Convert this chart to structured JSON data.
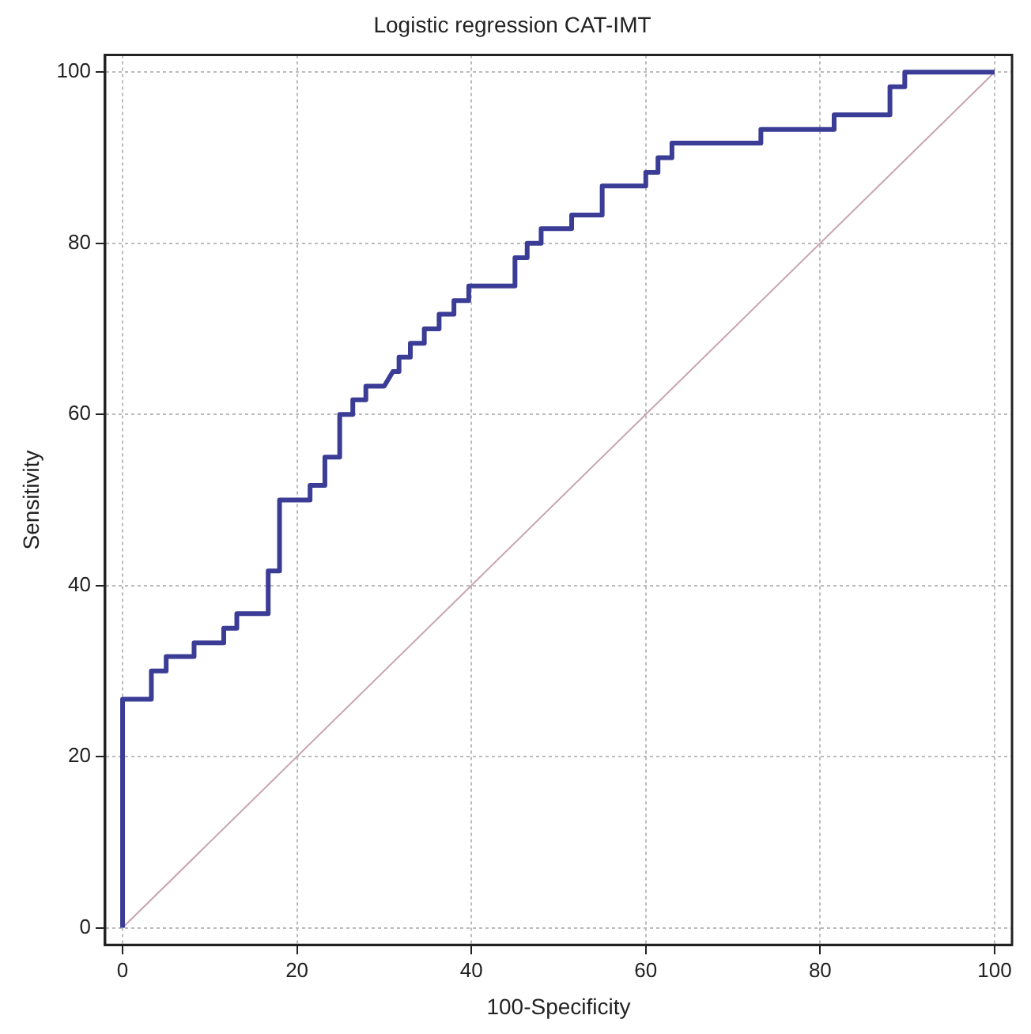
{
  "chart_data": {
    "type": "line",
    "title": "Logistic regression CAT-IMT",
    "xlabel": "100-Specificity",
    "ylabel": "Sensitivity",
    "series": [
      {
        "color": "#3b3c96",
        "x": [
          0,
          0,
          3.3,
          3.3,
          5,
          5,
          8.2,
          8.2,
          11.6,
          11.6,
          13.1,
          13.1,
          16.7,
          16.7,
          18,
          18,
          21.5,
          21.5,
          23.2,
          23.2,
          24.9,
          24.9,
          26.4,
          26.4,
          27.9,
          27.9,
          30,
          31,
          31.7,
          31.7,
          33,
          33,
          34.6,
          34.6,
          36.3,
          36.3,
          38,
          38,
          39.7,
          39.7,
          45,
          45,
          46.4,
          46.4,
          48,
          48,
          51.5,
          51.5,
          55,
          55,
          60,
          60,
          61.4,
          61.4,
          63,
          63,
          73.2,
          73.2,
          81.6,
          81.6,
          88,
          88,
          89.7,
          89.7,
          100
        ],
        "values": [
          0,
          26.7,
          26.7,
          30,
          30,
          31.7,
          31.7,
          33.3,
          33.3,
          35,
          35,
          36.7,
          36.7,
          41.7,
          41.7,
          50,
          50,
          51.7,
          51.7,
          55,
          55,
          60,
          60,
          61.7,
          61.7,
          63.3,
          63.3,
          65,
          65,
          66.7,
          66.7,
          68.3,
          68.3,
          70,
          70,
          71.7,
          71.7,
          73.3,
          73.3,
          75,
          75,
          78.3,
          78.3,
          80,
          80,
          81.7,
          81.7,
          83.3,
          83.3,
          86.7,
          86.7,
          88.3,
          88.3,
          90,
          90,
          91.7,
          91.7,
          93.3,
          93.3,
          95,
          95,
          98.3,
          98.3,
          100,
          100
        ]
      },
      {
        "color": "#c9a3b4",
        "x": [
          0,
          100
        ],
        "values": [
          0,
          100
        ]
      }
    ],
    "xlim": [
      -2,
      102
    ],
    "ylim": [
      -2,
      102
    ],
    "xticks": [
      0,
      20,
      40,
      60,
      80,
      100
    ],
    "yticks": [
      0,
      20,
      40,
      60,
      80,
      100
    ],
    "grid": true,
    "legend": false,
    "marker": "none"
  }
}
